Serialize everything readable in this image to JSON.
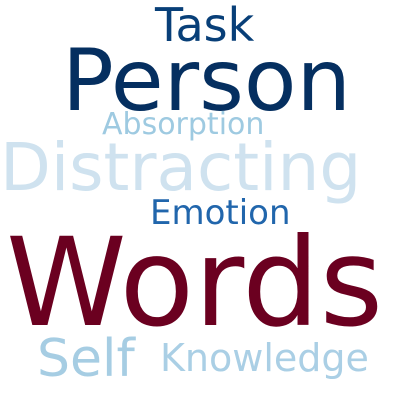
{
  "words": [
    {
      "key": "task",
      "text": "Task",
      "color": "#083f78"
    },
    {
      "key": "person",
      "text": "Person",
      "color": "#052f60"
    },
    {
      "key": "absorption",
      "text": "Absorption",
      "color": "#9ecae1"
    },
    {
      "key": "distracting",
      "text": "Distracting",
      "color": "#cfe2ef"
    },
    {
      "key": "emotion",
      "text": "Emotion",
      "color": "#2166ac"
    },
    {
      "key": "words",
      "text": "Words",
      "color": "#6b0020"
    },
    {
      "key": "self",
      "text": "Self",
      "color": "#a6cde3"
    },
    {
      "key": "knowledge",
      "text": "Knowledge",
      "color": "#aacfe5"
    }
  ]
}
